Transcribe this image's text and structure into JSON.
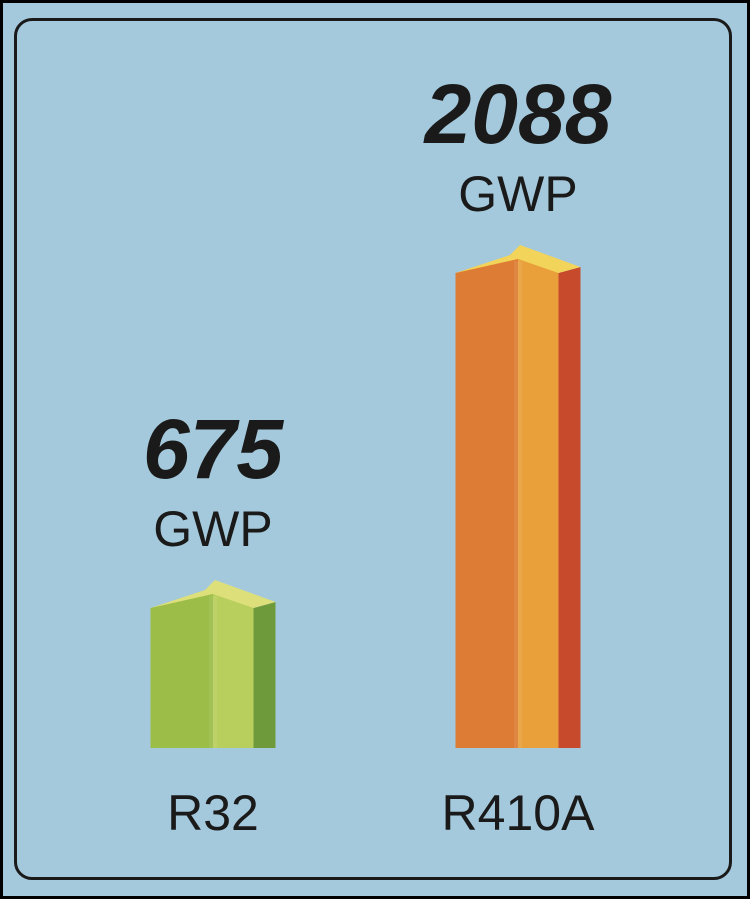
{
  "chart_data": {
    "type": "bar",
    "categories": [
      "R32",
      "R410A"
    ],
    "values": [
      675,
      2088
    ],
    "value_labels": [
      "675",
      "2088"
    ],
    "unit": "GWP",
    "title": "",
    "xlabel": "",
    "ylabel": "",
    "grid": false,
    "colors": {
      "R32": {
        "top": "#dde07a",
        "front_light": "#b9cf5d",
        "front": "#9cbd48",
        "side": "#6f9a3c"
      },
      "R410A": {
        "top": "#f2d45a",
        "front_light": "#e9a03a",
        "front": "#dd7c34",
        "side": "#c84a2c"
      },
      "background": "#a4c9dc",
      "text": "#1a1a1a"
    }
  }
}
